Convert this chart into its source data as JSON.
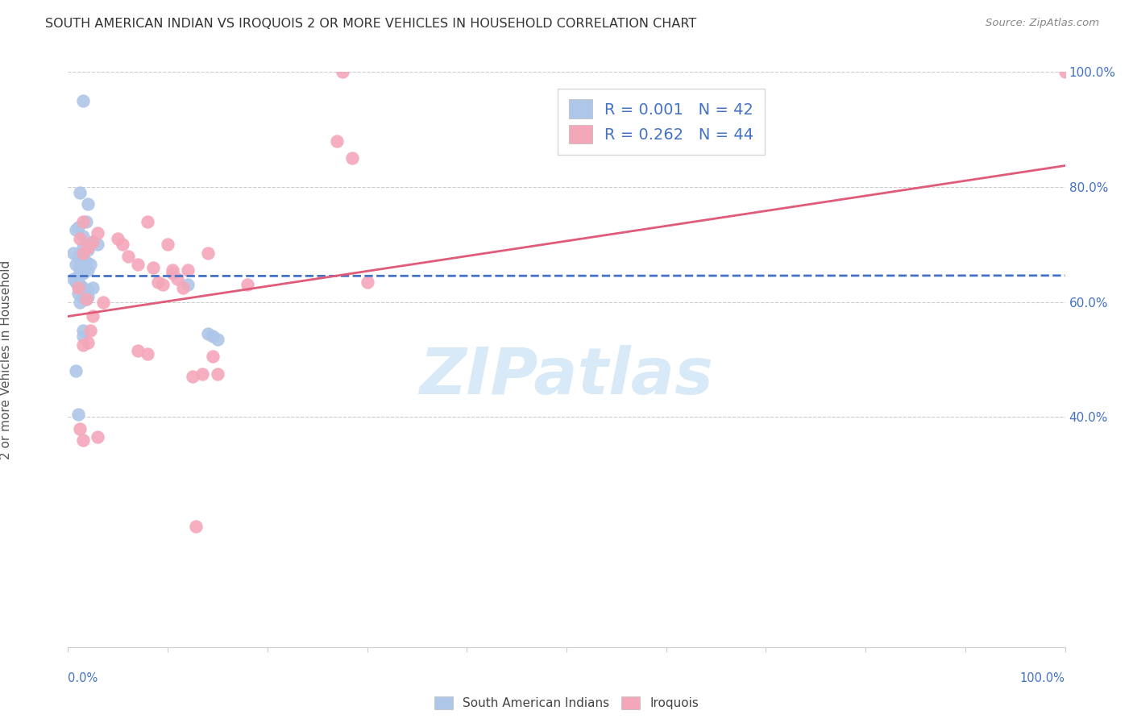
{
  "title": "SOUTH AMERICAN INDIAN VS IROQUOIS 2 OR MORE VEHICLES IN HOUSEHOLD CORRELATION CHART",
  "source": "Source: ZipAtlas.com",
  "ylabel": "2 or more Vehicles in Household",
  "watermark": "ZIPatlas",
  "blue_label": "South American Indians",
  "pink_label": "Iroquois",
  "blue_R": "R = 0.001",
  "blue_N": "N = 42",
  "pink_R": "R = 0.262",
  "pink_N": "N = 44",
  "xlim": [
    0,
    100
  ],
  "ylim": [
    0,
    100
  ],
  "ytick_vals": [
    40,
    60,
    80,
    100
  ],
  "ytick_labels": [
    "40.0%",
    "60.0%",
    "80.0%",
    "100.0%"
  ],
  "blue_scatter_x": [
    1.5,
    1.2,
    2.0,
    1.8,
    1.0,
    0.8,
    1.5,
    2.5,
    3.0,
    1.5,
    2.0,
    0.5,
    1.0,
    1.5,
    1.8,
    0.8,
    1.2,
    2.0,
    1.5,
    1.0,
    0.5,
    0.8,
    1.2,
    1.5,
    2.0,
    1.0,
    1.5,
    1.8,
    1.2,
    12.0,
    2.5,
    1.5,
    14.0,
    14.5,
    15.0,
    0.8,
    1.0,
    1.5,
    1.2,
    1.8,
    2.2,
    2.0
  ],
  "blue_scatter_y": [
    95.0,
    79.0,
    77.0,
    74.0,
    73.0,
    72.5,
    71.5,
    70.5,
    70.0,
    69.5,
    69.0,
    68.5,
    68.0,
    67.5,
    67.0,
    66.5,
    66.0,
    65.5,
    65.0,
    64.5,
    64.0,
    63.5,
    63.0,
    62.5,
    62.0,
    61.5,
    61.0,
    60.5,
    60.0,
    63.0,
    62.5,
    54.0,
    54.5,
    54.0,
    53.5,
    48.0,
    40.5,
    55.0,
    65.5,
    66.0,
    66.5,
    61.0
  ],
  "pink_scatter_x": [
    27.0,
    1.5,
    1.2,
    2.5,
    2.0,
    1.5,
    3.0,
    5.0,
    5.5,
    8.0,
    6.0,
    7.0,
    8.5,
    10.0,
    12.0,
    10.5,
    14.0,
    11.0,
    9.0,
    9.5,
    2.5,
    1.8,
    3.5,
    1.2,
    1.5,
    2.0,
    7.0,
    8.0,
    13.5,
    30.0,
    27.5,
    100.0,
    28.5,
    14.5,
    15.0,
    12.5,
    1.0,
    1.5,
    2.2,
    3.0,
    10.5,
    11.5,
    12.8,
    18.0
  ],
  "pink_scatter_y": [
    88.0,
    74.0,
    71.0,
    70.5,
    69.5,
    68.5,
    72.0,
    71.0,
    70.0,
    74.0,
    68.0,
    66.5,
    66.0,
    70.0,
    65.5,
    65.0,
    68.5,
    64.0,
    63.5,
    63.0,
    57.5,
    60.5,
    60.0,
    38.0,
    36.0,
    53.0,
    51.5,
    51.0,
    47.5,
    63.5,
    100.0,
    100.0,
    85.0,
    50.5,
    47.5,
    47.0,
    62.5,
    52.5,
    55.0,
    36.5,
    65.5,
    62.5,
    21.0,
    63.0
  ],
  "blue_line_x0": 0,
  "blue_line_x1": 100,
  "blue_line_y0": 64.5,
  "blue_line_y1": 64.6,
  "pink_line_x0": 0,
  "pink_line_x1": 100,
  "pink_line_y0": 57.5,
  "pink_line_y1": 83.7,
  "bg_color": "#ffffff",
  "blue_dot_color": "#aec6e8",
  "pink_dot_color": "#f4a7b9",
  "blue_line_color": "#4472c4",
  "pink_line_color": "#e05a7a",
  "grid_color": "#cccccc",
  "title_color": "#333333",
  "source_color": "#888888",
  "axis_label_color": "#4472c4",
  "watermark_color": "#d8eaf8"
}
